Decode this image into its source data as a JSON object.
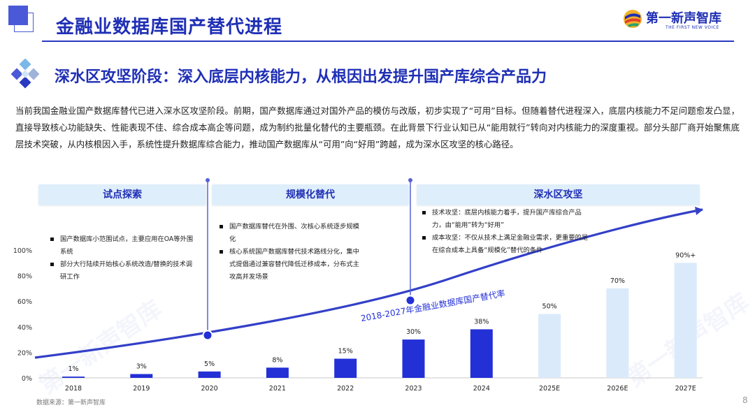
{
  "header": {
    "title": "金融业数据库国产替代进程",
    "logo_cn": "第一新声智库",
    "logo_en": "THE FIRST NEW VOICE"
  },
  "section": {
    "title": "深水区攻坚阶段：深入底层内核能力，从根因出发提升国产库综合产品力"
  },
  "intro": "当前我国金融业国产数据库替代已进入深水区攻坚阶段。前期，国产数据库通过对国外产品的模仿与改版，初步实现了“可用”目标。但随着替代进程深入，底层内核能力不足问题愈发凸显，直接导致核心功能缺失、性能表现不佳、综合成本高企等问题，成为制约批量化替代的主要瓶颈。在此背景下行业认知已从“能用就行”转向对内核能力的深度重视。部分头部厂商开始聚焦底层技术突破，从内核根因入手，系统性提升数据库综合能力，推动国产数据库从“可用”向“好用”跨越，成为深水区攻坚的核心路径。",
  "phases": [
    {
      "label": "试点探索",
      "bullets": [
        "国产数据库小范围试点，主要应用在OA等外围系统",
        "部分大行陆续开始核心系统改造/替换的技术调研工作"
      ]
    },
    {
      "label": "规模化替代",
      "bullets": [
        "国产数据库替代在外围、次核心系统逐步规模化",
        "核心系统国产数据库替代技术路线分化，集中式提倡通过兼容替代降低迁移成本，分布式主攻高并发场景"
      ]
    },
    {
      "label": "深水区攻坚",
      "bullets": [
        "技术攻坚：底层内核能力着手，提升国产库综合产品力，由“能用”转为“好用”",
        "成本攻坚：不仅从技术上满足金融业需求，更重要的是在综合成本上具备“规模化”替代的条件"
      ]
    }
  ],
  "chart_data": {
    "type": "bar",
    "categories": [
      "2018",
      "2019",
      "2020",
      "2021",
      "2022",
      "2023",
      "2024",
      "2025E",
      "2026E",
      "2027E"
    ],
    "values": [
      1,
      3,
      5,
      8,
      15,
      30,
      38,
      50,
      70,
      90
    ],
    "labels": [
      "1%",
      "3%",
      "5%",
      "8%",
      "15%",
      "30%",
      "38%",
      "50%",
      "70%",
      "90%+"
    ],
    "projected": [
      false,
      false,
      false,
      false,
      false,
      false,
      false,
      true,
      true,
      true
    ],
    "yticks": [
      "0%",
      "20%",
      "40%",
      "60%",
      "80%",
      "100%"
    ],
    "ylim": [
      0,
      100
    ],
    "trend_label": "2018-2027年金融业数据库国产替代率",
    "colors": {
      "actual": "#2330d6",
      "projected": "#dbeafb",
      "trend": "#3340c8",
      "milestone": "#5563d6"
    }
  },
  "footer": {
    "source": "数据来源：第一新声智库",
    "page": "8"
  }
}
